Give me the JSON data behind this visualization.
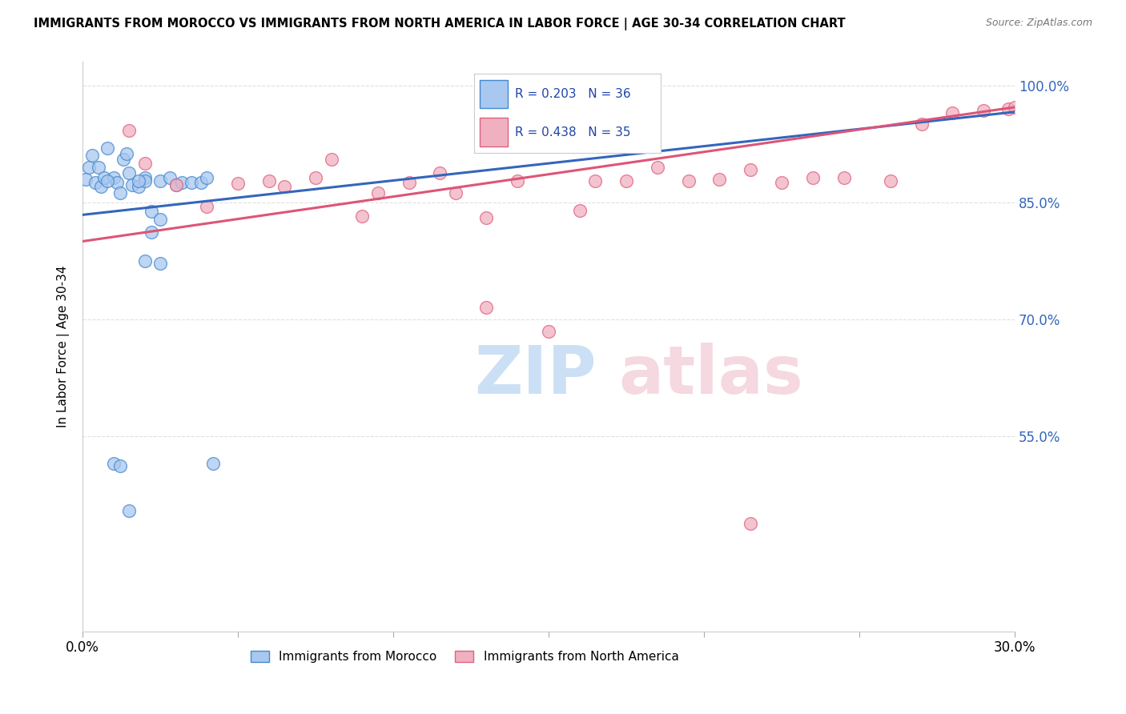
{
  "title": "IMMIGRANTS FROM MOROCCO VS IMMIGRANTS FROM NORTH AMERICA IN LABOR FORCE | AGE 30-34 CORRELATION CHART",
  "source": "Source: ZipAtlas.com",
  "ylabel": "In Labor Force | Age 30-34",
  "legend_label1": "Immigrants from Morocco",
  "legend_label2": "Immigrants from North America",
  "r1": 0.203,
  "n1": 36,
  "r2": 0.438,
  "n2": 35,
  "color_blue_fill": "#a8c8f0",
  "color_blue_edge": "#4488cc",
  "color_pink_fill": "#f0b0c0",
  "color_pink_edge": "#e06080",
  "color_blue_line": "#3366bb",
  "color_pink_line": "#dd5577",
  "color_r_text": "#2244aa",
  "color_axis_blue": "#3366bb",
  "xmin": 0.0,
  "xmax": 0.3,
  "ymin": 0.3,
  "ymax": 1.03,
  "yticks": [
    1.0,
    0.85,
    0.7,
    0.55
  ],
  "ytick_labels": [
    "100.0%",
    "85.0%",
    "70.0%",
    "55.0%"
  ],
  "xticks": [
    0.0,
    0.05,
    0.1,
    0.15,
    0.2,
    0.25,
    0.3
  ],
  "morocco_x": [
    0.001,
    0.002,
    0.003,
    0.004,
    0.005,
    0.006,
    0.007,
    0.008,
    0.01,
    0.011,
    0.012,
    0.013,
    0.014,
    0.015,
    0.016,
    0.018,
    0.02,
    0.02,
    0.022,
    0.025,
    0.025,
    0.028,
    0.03,
    0.032,
    0.035,
    0.038,
    0.04,
    0.042,
    0.02,
    0.025,
    0.018,
    0.022,
    0.01,
    0.012,
    0.015,
    0.008
  ],
  "morocco_y": [
    0.88,
    0.895,
    0.91,
    0.875,
    0.895,
    0.87,
    0.882,
    0.92,
    0.882,
    0.875,
    0.862,
    0.905,
    0.912,
    0.888,
    0.872,
    0.87,
    0.882,
    0.878,
    0.838,
    0.828,
    0.878,
    0.882,
    0.872,
    0.875,
    0.875,
    0.875,
    0.882,
    0.515,
    0.775,
    0.772,
    0.878,
    0.812,
    0.515,
    0.512,
    0.455,
    0.878
  ],
  "na_x": [
    0.015,
    0.02,
    0.03,
    0.04,
    0.05,
    0.06,
    0.065,
    0.075,
    0.08,
    0.09,
    0.095,
    0.105,
    0.115,
    0.12,
    0.13,
    0.14,
    0.15,
    0.16,
    0.165,
    0.175,
    0.185,
    0.195,
    0.205,
    0.215,
    0.225,
    0.235,
    0.245,
    0.26,
    0.27,
    0.28,
    0.29,
    0.298,
    0.3,
    0.215,
    0.13
  ],
  "na_y": [
    0.942,
    0.9,
    0.872,
    0.845,
    0.874,
    0.878,
    0.87,
    0.882,
    0.905,
    0.832,
    0.862,
    0.875,
    0.888,
    0.862,
    0.715,
    0.878,
    0.685,
    0.84,
    0.878,
    0.878,
    0.895,
    0.878,
    0.88,
    0.892,
    0.875,
    0.882,
    0.882,
    0.878,
    0.95,
    0.965,
    0.968,
    0.97,
    0.972,
    0.438,
    0.83
  ],
  "blue_line_x0": 0.0,
  "blue_line_x1": 0.3,
  "blue_line_y0": 0.834,
  "blue_line_y1": 0.966,
  "pink_line_x0": 0.0,
  "pink_line_x1": 0.3,
  "pink_line_y0": 0.8,
  "pink_line_y1": 0.972
}
